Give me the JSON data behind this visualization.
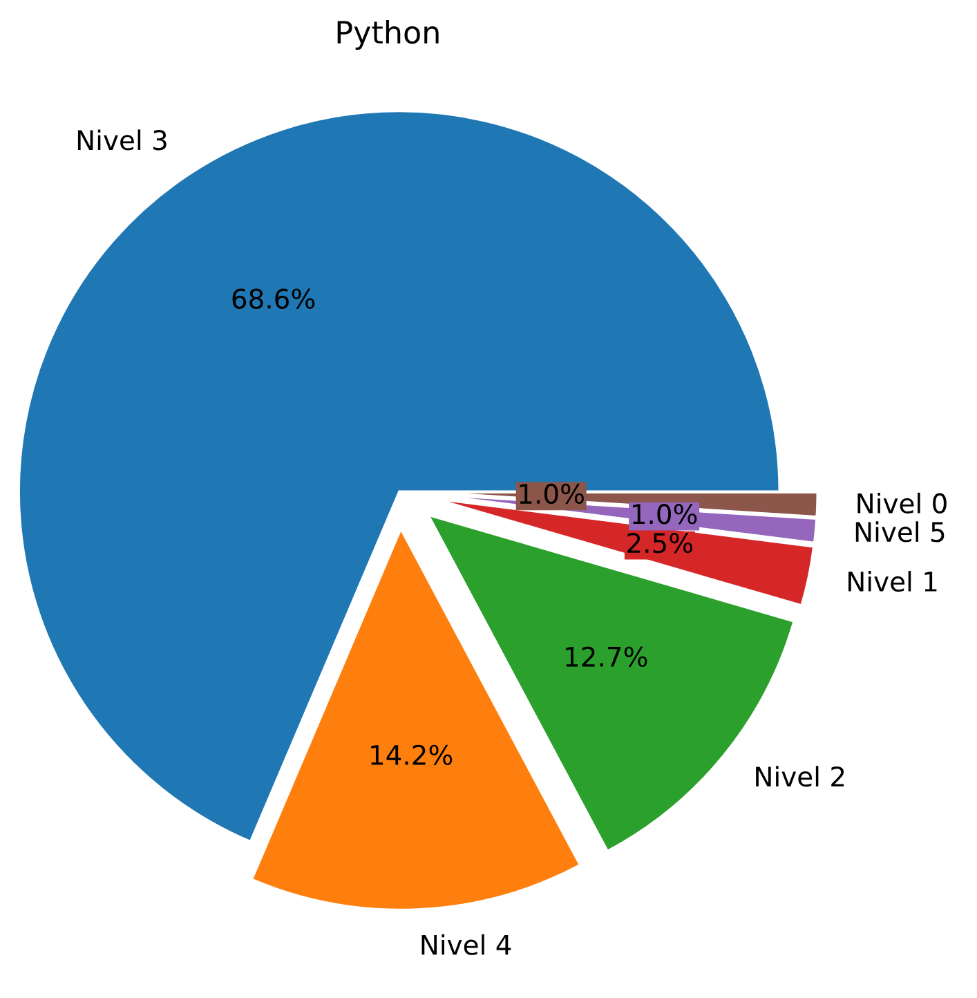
{
  "chart_data": {
    "type": "pie",
    "title": "Python",
    "categories": [
      "Nivel 3",
      "Nivel 4",
      "Nivel 2",
      "Nivel 1",
      "Nivel 5",
      "Nivel 0"
    ],
    "values": [
      68.6,
      14.2,
      12.7,
      2.5,
      1.0,
      1.0
    ],
    "value_labels": [
      "68.6%",
      "14.2%",
      "12.7%",
      "2.5%",
      "1.0%",
      "1.0%"
    ],
    "colors": [
      "#1f77b4",
      "#ff7f0e",
      "#2ca02c",
      "#d62728",
      "#9467bd",
      "#8c564b"
    ]
  }
}
